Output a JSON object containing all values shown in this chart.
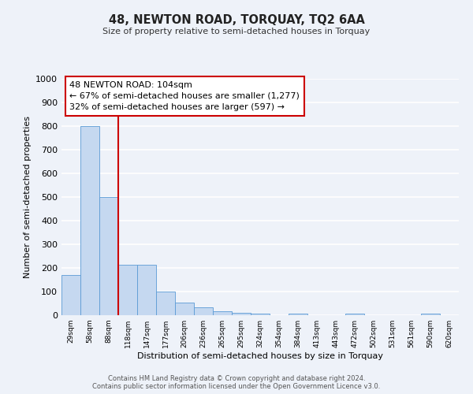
{
  "title": "48, NEWTON ROAD, TORQUAY, TQ2 6AA",
  "subtitle": "Size of property relative to semi-detached houses in Torquay",
  "xlabel": "Distribution of semi-detached houses by size in Torquay",
  "ylabel": "Number of semi-detached properties",
  "categories": [
    "29sqm",
    "58sqm",
    "88sqm",
    "118sqm",
    "147sqm",
    "177sqm",
    "206sqm",
    "236sqm",
    "265sqm",
    "295sqm",
    "324sqm",
    "354sqm",
    "384sqm",
    "413sqm",
    "443sqm",
    "472sqm",
    "502sqm",
    "531sqm",
    "561sqm",
    "590sqm",
    "620sqm"
  ],
  "values": [
    170,
    800,
    500,
    215,
    215,
    100,
    55,
    35,
    18,
    10,
    8,
    0,
    8,
    0,
    0,
    8,
    0,
    0,
    0,
    8,
    0
  ],
  "bar_color": "#c5d8f0",
  "bar_edge_color": "#5b9bd5",
  "vline_x": 2.5,
  "vline_color": "#cc0000",
  "ylim": [
    0,
    1000
  ],
  "yticks": [
    0,
    100,
    200,
    300,
    400,
    500,
    600,
    700,
    800,
    900,
    1000
  ],
  "annotation_title": "48 NEWTON ROAD: 104sqm",
  "annotation_line1": "← 67% of semi-detached houses are smaller (1,277)",
  "annotation_line2": "32% of semi-detached houses are larger (597) →",
  "annotation_box_color": "#ffffff",
  "annotation_box_edge": "#cc0000",
  "footer_line1": "Contains HM Land Registry data © Crown copyright and database right 2024.",
  "footer_line2": "Contains public sector information licensed under the Open Government Licence v3.0.",
  "background_color": "#eef2f9",
  "grid_color": "#ffffff"
}
